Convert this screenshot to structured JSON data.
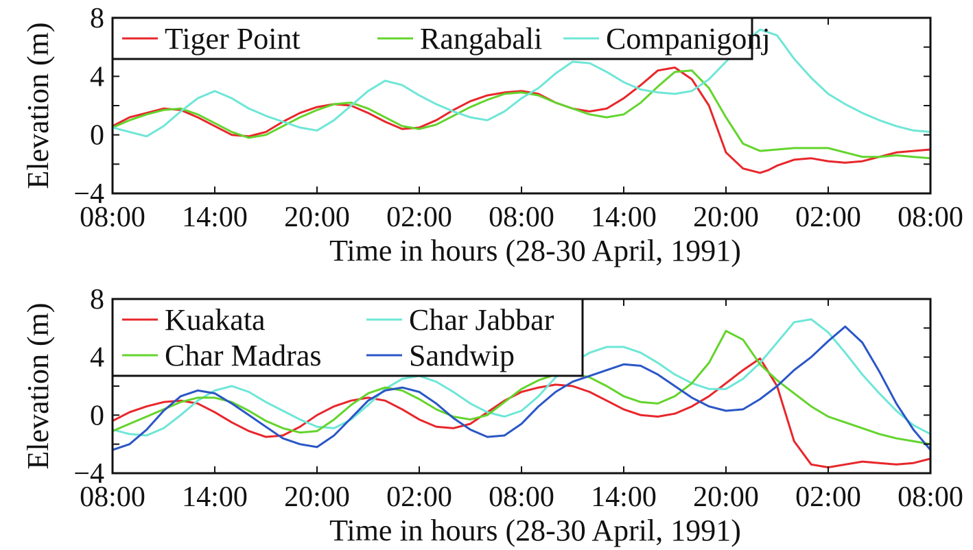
{
  "figure": {
    "background": "#ffffff"
  },
  "chart_data": [
    {
      "type": "line",
      "title": "",
      "xlabel": "Time in hours (28-30 April, 1991)",
      "ylabel": "Elevation (m)",
      "xlim": [
        0,
        48
      ],
      "ylim": [
        -4,
        8
      ],
      "xticks": [
        0,
        6,
        12,
        18,
        24,
        30,
        36,
        42,
        48
      ],
      "xtick_labels": [
        "08:00",
        "14:00",
        "20:00",
        "02:00",
        "08:00",
        "14:00",
        "20:00",
        "02:00",
        "08:00"
      ],
      "yticks": [
        -4,
        0,
        4,
        8
      ],
      "ytick_labels": [
        "−4",
        "0",
        "4",
        "8"
      ],
      "grid": false,
      "legend_position": "top-left",
      "legend_columns": 3,
      "series": [
        {
          "name": "Tiger Point",
          "color": "#e8262b",
          "x": [
            0,
            1,
            2,
            3,
            4,
            5,
            6,
            7,
            8,
            9,
            10,
            11,
            12,
            13,
            14,
            15,
            16,
            17,
            18,
            19,
            20,
            21,
            22,
            23,
            24,
            25,
            26,
            27,
            28,
            29,
            30,
            31,
            32,
            33,
            34,
            35,
            36,
            37,
            38,
            38.5,
            39,
            40,
            41,
            42,
            43,
            44,
            45,
            46,
            47,
            48
          ],
          "y": [
            0.6,
            1.2,
            1.5,
            1.8,
            1.7,
            1.2,
            0.6,
            0.0,
            -0.1,
            0.2,
            0.9,
            1.5,
            1.9,
            2.1,
            2.0,
            1.5,
            0.9,
            0.4,
            0.5,
            1.0,
            1.7,
            2.3,
            2.7,
            2.9,
            3.0,
            2.8,
            2.2,
            1.8,
            1.6,
            1.8,
            2.5,
            3.4,
            4.4,
            4.6,
            3.8,
            2.0,
            -1.2,
            -2.3,
            -2.6,
            -2.4,
            -2.1,
            -1.7,
            -1.6,
            -1.8,
            -1.9,
            -1.8,
            -1.5,
            -1.2,
            -1.1,
            -1.0
          ]
        },
        {
          "name": "Rangabali",
          "color": "#63d42c",
          "x": [
            0,
            1,
            2,
            3,
            4,
            5,
            6,
            7,
            8,
            9,
            10,
            11,
            12,
            13,
            14,
            15,
            16,
            17,
            18,
            19,
            20,
            21,
            22,
            23,
            24,
            25,
            26,
            27,
            28,
            29,
            30,
            31,
            32,
            33,
            34,
            35,
            36,
            37,
            38,
            39,
            40,
            41,
            42,
            43,
            44,
            45,
            46,
            47,
            48
          ],
          "y": [
            0.5,
            1.0,
            1.4,
            1.7,
            1.8,
            1.4,
            0.8,
            0.2,
            -0.2,
            0.0,
            0.6,
            1.2,
            1.7,
            2.1,
            2.2,
            1.8,
            1.2,
            0.6,
            0.4,
            0.7,
            1.3,
            1.9,
            2.4,
            2.8,
            2.9,
            2.7,
            2.2,
            1.8,
            1.4,
            1.2,
            1.4,
            2.2,
            3.3,
            4.3,
            4.4,
            3.2,
            1.2,
            -0.6,
            -1.1,
            -1.0,
            -0.9,
            -0.9,
            -0.9,
            -1.2,
            -1.5,
            -1.5,
            -1.4,
            -1.5,
            -1.6
          ]
        },
        {
          "name": "Companigonj",
          "color": "#6ee6d7",
          "x": [
            0,
            1,
            2,
            3,
            4,
            5,
            6,
            7,
            8,
            9,
            10,
            11,
            12,
            13,
            14,
            15,
            16,
            17,
            18,
            19,
            20,
            21,
            22,
            23,
            24,
            25,
            26,
            27,
            28,
            29,
            30,
            31,
            32,
            33,
            34,
            35,
            36,
            37,
            38,
            39,
            40,
            41,
            42,
            43,
            44,
            45,
            46,
            47,
            48
          ],
          "y": [
            0.5,
            0.2,
            -0.1,
            0.6,
            1.6,
            2.5,
            3.0,
            2.5,
            1.8,
            1.3,
            0.9,
            0.5,
            0.3,
            1.0,
            2.0,
            3.0,
            3.7,
            3.4,
            2.7,
            2.1,
            1.6,
            1.2,
            1.0,
            1.6,
            2.5,
            3.2,
            4.2,
            5.0,
            4.9,
            4.3,
            3.6,
            3.1,
            2.9,
            2.8,
            3.0,
            3.8,
            5.0,
            6.2,
            7.2,
            6.8,
            5.2,
            3.9,
            2.8,
            2.1,
            1.5,
            1.0,
            0.6,
            0.3,
            0.2
          ]
        }
      ]
    },
    {
      "type": "line",
      "title": "",
      "xlabel": "Time in hours (28-30 April, 1991)",
      "ylabel": "Elevation (m)",
      "xlim": [
        0,
        48
      ],
      "ylim": [
        -4,
        8
      ],
      "xticks": [
        0,
        6,
        12,
        18,
        24,
        30,
        36,
        42,
        48
      ],
      "xtick_labels": [
        "08:00",
        "14:00",
        "20:00",
        "02:00",
        "08:00",
        "14:00",
        "20:00",
        "02:00",
        "08:00"
      ],
      "yticks": [
        -4,
        0,
        4,
        8
      ],
      "ytick_labels": [
        "−4",
        "0",
        "4",
        "8"
      ],
      "grid": false,
      "legend_position": "top-left",
      "legend_columns": 2,
      "series": [
        {
          "name": "Kuakata",
          "color": "#e8262b",
          "x": [
            0,
            1,
            2,
            3,
            4,
            5,
            6,
            7,
            8,
            9,
            10,
            11,
            12,
            13,
            14,
            15,
            16,
            17,
            18,
            19,
            20,
            21,
            22,
            23,
            24,
            25,
            26,
            27,
            28,
            29,
            30,
            31,
            32,
            33,
            34,
            35,
            36,
            37,
            38,
            39,
            40,
            41,
            42,
            43,
            44,
            45,
            46,
            47,
            48
          ],
          "y": [
            -0.4,
            0.2,
            0.6,
            0.9,
            1.0,
            0.8,
            0.2,
            -0.5,
            -1.1,
            -1.5,
            -1.4,
            -0.8,
            0.0,
            0.6,
            1.0,
            1.2,
            1.0,
            0.4,
            -0.3,
            -0.8,
            -0.9,
            -0.6,
            0.2,
            1.0,
            1.6,
            1.9,
            2.1,
            2.0,
            1.6,
            1.0,
            0.4,
            0.0,
            -0.1,
            0.1,
            0.6,
            1.3,
            2.2,
            3.1,
            3.9,
            2.0,
            -1.8,
            -3.4,
            -3.6,
            -3.4,
            -3.2,
            -3.3,
            -3.4,
            -3.3,
            -3.0
          ]
        },
        {
          "name": "Char Jabbar",
          "color": "#6ee6d7",
          "x": [
            0,
            1,
            2,
            3,
            4,
            5,
            6,
            7,
            8,
            9,
            10,
            11,
            12,
            13,
            14,
            15,
            16,
            17,
            18,
            19,
            20,
            21,
            22,
            23,
            24,
            25,
            26,
            27,
            28,
            29,
            30,
            31,
            32,
            33,
            34,
            35,
            36,
            37,
            38,
            39,
            40,
            41,
            42,
            43,
            44,
            45,
            46,
            47,
            48
          ],
          "y": [
            -1.0,
            -1.3,
            -1.4,
            -0.9,
            0.0,
            1.0,
            1.7,
            2.0,
            1.6,
            0.9,
            0.3,
            -0.3,
            -0.8,
            -0.9,
            -0.3,
            0.7,
            1.8,
            2.5,
            2.7,
            2.3,
            1.6,
            0.8,
            0.2,
            -0.1,
            0.3,
            1.3,
            2.6,
            3.6,
            4.3,
            4.7,
            4.7,
            4.3,
            3.6,
            2.8,
            2.2,
            1.8,
            1.8,
            2.5,
            3.6,
            5.0,
            6.4,
            6.6,
            5.7,
            4.3,
            2.8,
            1.5,
            0.3,
            -0.7,
            -1.3
          ]
        },
        {
          "name": "Char Madras",
          "color": "#63d42c",
          "x": [
            0,
            1,
            2,
            3,
            4,
            5,
            6,
            7,
            8,
            9,
            10,
            11,
            12,
            13,
            14,
            15,
            16,
            17,
            18,
            19,
            20,
            21,
            22,
            23,
            24,
            25,
            26,
            27,
            28,
            29,
            30,
            31,
            32,
            33,
            34,
            35,
            36,
            37,
            38,
            39,
            40,
            41,
            42,
            43,
            44,
            45,
            46,
            47,
            48
          ],
          "y": [
            -1.1,
            -0.6,
            -0.1,
            0.4,
            0.9,
            1.2,
            1.2,
            0.9,
            0.3,
            -0.4,
            -0.9,
            -1.2,
            -1.1,
            -0.3,
            0.7,
            1.5,
            1.9,
            1.7,
            1.1,
            0.4,
            -0.1,
            -0.3,
            0.0,
            0.9,
            1.8,
            2.4,
            2.8,
            2.9,
            2.6,
            2.0,
            1.3,
            0.9,
            0.8,
            1.3,
            2.2,
            3.6,
            5.8,
            5.2,
            3.5,
            2.4,
            1.5,
            0.6,
            -0.1,
            -0.5,
            -0.9,
            -1.3,
            -1.6,
            -1.8,
            -2.0
          ]
        },
        {
          "name": "Sandwip",
          "color": "#2a56c6",
          "x": [
            0,
            1,
            2,
            3,
            4,
            5,
            6,
            7,
            8,
            9,
            10,
            11,
            12,
            13,
            14,
            15,
            16,
            17,
            18,
            19,
            20,
            21,
            22,
            23,
            24,
            25,
            26,
            27,
            28,
            29,
            30,
            31,
            32,
            33,
            34,
            35,
            36,
            37,
            38,
            39,
            40,
            41,
            42,
            43,
            44,
            45,
            46,
            47,
            48
          ],
          "y": [
            -2.4,
            -2.0,
            -1.0,
            0.3,
            1.3,
            1.7,
            1.5,
            0.8,
            0.0,
            -0.8,
            -1.6,
            -2.0,
            -2.2,
            -1.4,
            -0.2,
            1.0,
            1.7,
            1.9,
            1.6,
            0.8,
            -0.2,
            -1.0,
            -1.5,
            -1.4,
            -0.6,
            0.6,
            1.6,
            2.3,
            2.7,
            3.1,
            3.5,
            3.4,
            2.8,
            2.0,
            1.2,
            0.6,
            0.3,
            0.4,
            1.1,
            2.0,
            3.1,
            4.0,
            5.1,
            6.1,
            5.0,
            3.0,
            0.8,
            -1.0,
            -2.4
          ]
        }
      ]
    }
  ]
}
